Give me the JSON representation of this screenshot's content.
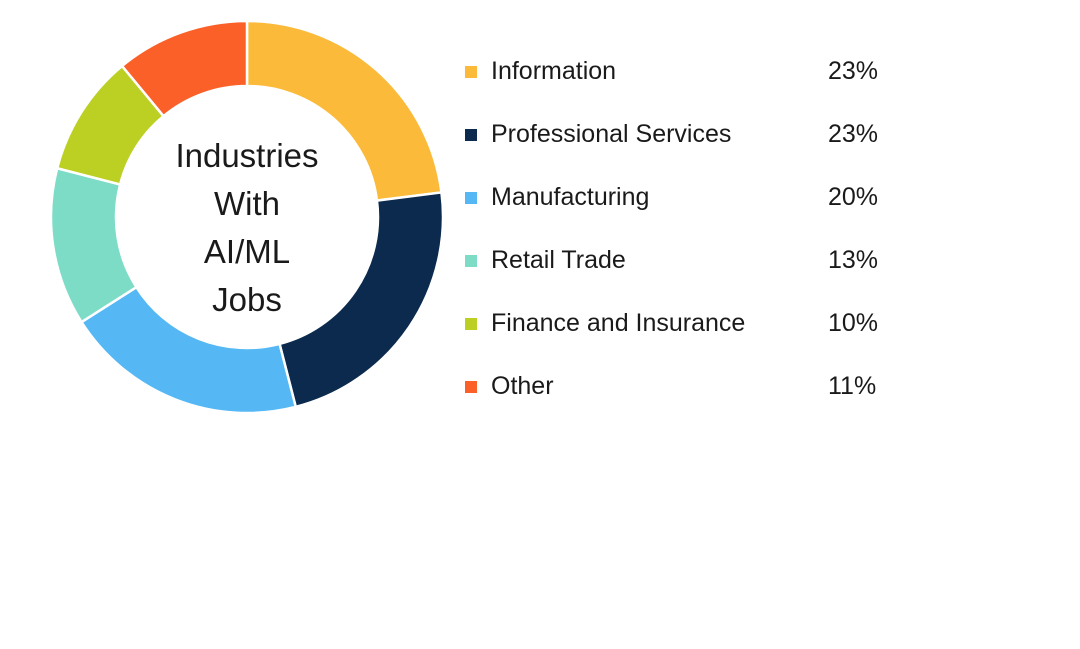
{
  "chart_data": {
    "type": "pie",
    "donut": true,
    "center_text": [
      "Industries",
      "With",
      "AI/ML",
      "Jobs"
    ],
    "slices": [
      {
        "label": "Information",
        "value": 23,
        "display": "23%",
        "color": "#FBBA39"
      },
      {
        "label": "Professional Services",
        "value": 23,
        "display": "23%",
        "color": "#0B2A4D"
      },
      {
        "label": "Manufacturing",
        "value": 20,
        "display": "20%",
        "color": "#55B8F5"
      },
      {
        "label": "Retail Trade",
        "value": 13,
        "display": "13%",
        "color": "#7CDCC6"
      },
      {
        "label": "Finance and Insurance",
        "value": 10,
        "display": "10%",
        "color": "#BCD024"
      },
      {
        "label": "Other",
        "value": 11,
        "display": "11%",
        "color": "#FA6028"
      }
    ],
    "legend_position": "right"
  }
}
